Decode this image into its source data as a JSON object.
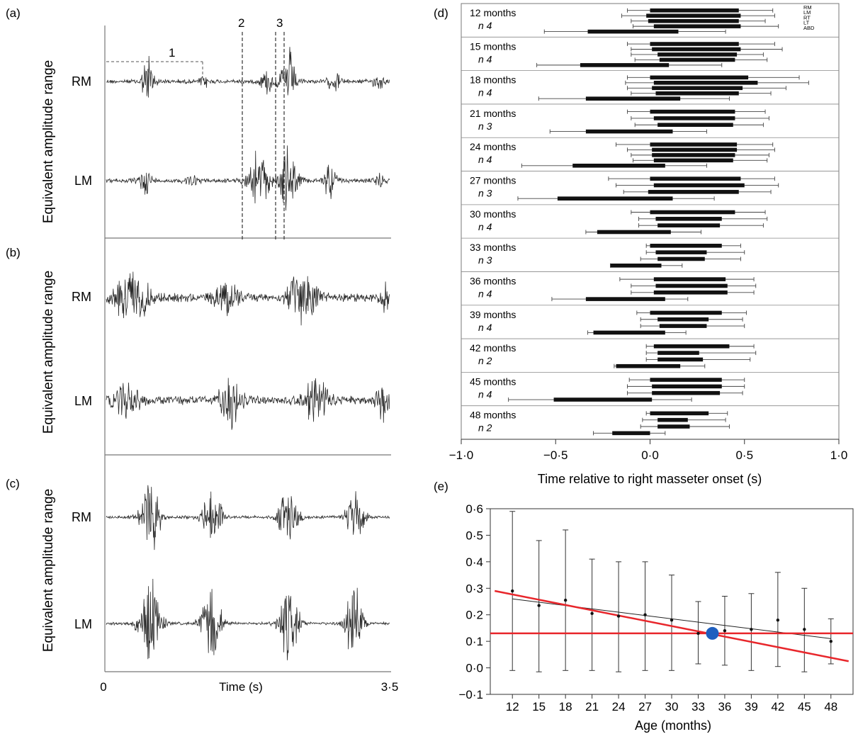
{
  "panels": {
    "a": {
      "label": "(a)",
      "ylabel": "Equivalent amplitude range",
      "trace_labels": [
        "RM",
        "LM"
      ],
      "annotations": [
        "1",
        "2",
        "3"
      ]
    },
    "b": {
      "label": "(b)",
      "ylabel": "Equivalent amplitude range",
      "trace_labels": [
        "RM",
        "LM"
      ]
    },
    "c": {
      "label": "(c)",
      "ylabel": "Equivalent amplitude range",
      "trace_labels": [
        "RM",
        "LM"
      ],
      "xlabel": "Time (s)",
      "x_start": "0",
      "x_end": "3·5"
    },
    "d": {
      "label": "(d)"
    },
    "e": {
      "label": "(e)"
    }
  },
  "colors": {
    "trace": "#2a2a2a",
    "bar": "#111111",
    "regression": "#e8262b",
    "marker": "#1f5fbf",
    "frame": "#777777"
  },
  "chart_data": [
    {
      "panel": "d",
      "type": "bar",
      "orientation": "horizontal-interval",
      "xlabel": "Time relative to right masseter onset (s)",
      "xlim": [
        -1.0,
        1.0
      ],
      "xticks": [
        -1.0,
        -0.5,
        0.0,
        0.5,
        1.0
      ],
      "xtick_labels": [
        "−1·0",
        "−0·5",
        "0·0",
        "0·5",
        "1·0"
      ],
      "legend": [
        "RM",
        "LM",
        "RT",
        "LT",
        "ABD"
      ],
      "legend_position": "top-right",
      "groups": [
        {
          "label": "12 months",
          "n": "n 4",
          "bars": [
            [
              0.0,
              0.47,
              0.65
            ],
            [
              -0.02,
              0.48,
              0.66
            ],
            [
              -0.01,
              0.47,
              0.61
            ],
            [
              0.02,
              0.48,
              0.68
            ],
            [
              -0.33,
              0.15,
              0.4
            ]
          ],
          "whisker_lo": [
            -0.12,
            -0.15,
            -0.1,
            -0.09,
            -0.56
          ]
        },
        {
          "label": "15 months",
          "n": "n 4",
          "bars": [
            [
              0.0,
              0.47,
              0.66
            ],
            [
              0.01,
              0.48,
              0.7
            ],
            [
              0.04,
              0.46,
              0.6
            ],
            [
              0.05,
              0.45,
              0.62
            ],
            [
              -0.37,
              0.1,
              0.38
            ]
          ],
          "whisker_lo": [
            -0.12,
            -0.1,
            -0.1,
            -0.08,
            -0.6
          ]
        },
        {
          "label": "18 months",
          "n": "n 4",
          "bars": [
            [
              0.0,
              0.52,
              0.79
            ],
            [
              0.02,
              0.57,
              0.84
            ],
            [
              0.01,
              0.49,
              0.72
            ],
            [
              0.03,
              0.47,
              0.64
            ],
            [
              -0.34,
              0.16,
              0.42
            ]
          ],
          "whisker_lo": [
            -0.12,
            -0.13,
            -0.12,
            -0.1,
            -0.59
          ]
        },
        {
          "label": "21 months",
          "n": "n 3",
          "bars": [
            [
              0.0,
              0.45,
              0.61
            ],
            [
              0.02,
              0.45,
              0.63
            ],
            [
              0.04,
              0.44,
              0.6
            ],
            [
              -0.34,
              0.12,
              0.3
            ]
          ],
          "whisker_lo": [
            -0.12,
            -0.1,
            -0.08,
            -0.53
          ]
        },
        {
          "label": "24 months",
          "n": "n 4",
          "bars": [
            [
              0.0,
              0.46,
              0.65
            ],
            [
              0.01,
              0.46,
              0.66
            ],
            [
              0.01,
              0.45,
              0.63
            ],
            [
              0.02,
              0.44,
              0.62
            ],
            [
              -0.41,
              0.08,
              0.3
            ]
          ],
          "whisker_lo": [
            -0.18,
            -0.12,
            -0.1,
            -0.09,
            -0.68
          ]
        },
        {
          "label": "27 months",
          "n": "n 3",
          "bars": [
            [
              0.0,
              0.48,
              0.66
            ],
            [
              0.02,
              0.5,
              0.68
            ],
            [
              -0.01,
              0.47,
              0.64
            ],
            [
              -0.49,
              0.12,
              0.34
            ]
          ],
          "whisker_lo": [
            -0.22,
            -0.18,
            -0.14,
            -0.7
          ]
        },
        {
          "label": "30 months",
          "n": "n 4",
          "bars": [
            [
              0.0,
              0.45,
              0.61
            ],
            [
              0.03,
              0.38,
              0.62
            ],
            [
              0.04,
              0.37,
              0.6
            ],
            [
              -0.28,
              0.11,
              0.27
            ]
          ],
          "whisker_lo": [
            -0.1,
            -0.06,
            -0.06,
            -0.34
          ]
        },
        {
          "label": "33 months",
          "n": "n 3",
          "bars": [
            [
              0.0,
              0.38,
              0.48
            ],
            [
              0.03,
              0.3,
              0.5
            ],
            [
              0.04,
              0.29,
              0.48
            ],
            [
              -0.21,
              0.06,
              0.17
            ]
          ],
          "whisker_lo": [
            -0.02,
            -0.02,
            -0.05,
            -0.21
          ]
        },
        {
          "label": "36 months",
          "n": "n 4",
          "bars": [
            [
              0.02,
              0.4,
              0.55
            ],
            [
              0.03,
              0.41,
              0.56
            ],
            [
              0.02,
              0.41,
              0.55
            ],
            [
              -0.34,
              0.08,
              0.2
            ]
          ],
          "whisker_lo": [
            -0.16,
            -0.1,
            -0.1,
            -0.52
          ]
        },
        {
          "label": "39 months",
          "n": "n 4",
          "bars": [
            [
              0.0,
              0.38,
              0.51
            ],
            [
              0.04,
              0.31,
              0.49
            ],
            [
              0.05,
              0.3,
              0.5
            ],
            [
              -0.3,
              0.08,
              0.19
            ]
          ],
          "whisker_lo": [
            -0.07,
            -0.05,
            -0.05,
            -0.33
          ]
        },
        {
          "label": "42 months",
          "n": "n 2",
          "bars": [
            [
              0.02,
              0.42,
              0.55
            ],
            [
              0.04,
              0.26,
              0.56
            ],
            [
              0.04,
              0.28,
              0.53
            ],
            [
              -0.18,
              0.16,
              0.29
            ]
          ],
          "whisker_lo": [
            -0.02,
            -0.02,
            -0.02,
            -0.19
          ]
        },
        {
          "label": "45 months",
          "n": "n 4",
          "bars": [
            [
              0.0,
              0.38,
              0.5
            ],
            [
              0.01,
              0.38,
              0.5
            ],
            [
              0.01,
              0.37,
              0.49
            ],
            [
              -0.51,
              0.01,
              0.22
            ]
          ],
          "whisker_lo": [
            -0.11,
            -0.12,
            -0.12,
            -0.75
          ]
        },
        {
          "label": "48 months",
          "n": "n 2",
          "bars": [
            [
              0.0,
              0.31,
              0.41
            ],
            [
              0.04,
              0.2,
              0.4
            ],
            [
              0.04,
              0.21,
              0.42
            ],
            [
              -0.2,
              0.0,
              0.08
            ]
          ],
          "whisker_lo": [
            -0.02,
            -0.04,
            -0.05,
            -0.3
          ]
        }
      ]
    },
    {
      "panel": "e",
      "type": "scatter",
      "xlabel": "Age (months)",
      "ylabel": "",
      "x": [
        12,
        15,
        18,
        21,
        24,
        27,
        30,
        33,
        36,
        39,
        42,
        45,
        48
      ],
      "xtick_labels": [
        "12",
        "15",
        "18",
        "21",
        "24",
        "27",
        "30",
        "33",
        "36",
        "39",
        "42",
        "45",
        "48"
      ],
      "ylim": [
        -0.1,
        0.6
      ],
      "yticks": [
        -0.1,
        0.0,
        0.1,
        0.2,
        0.3,
        0.4,
        0.5,
        0.6
      ],
      "ytick_labels": [
        "−0·1",
        "0·0",
        "0·1",
        "0·2",
        "0·3",
        "0·4",
        "0·5",
        "0·6"
      ],
      "y": [
        0.29,
        0.235,
        0.255,
        0.205,
        0.195,
        0.2,
        0.18,
        0.13,
        0.14,
        0.145,
        0.18,
        0.145,
        0.1
      ],
      "y_upper": [
        0.59,
        0.48,
        0.52,
        0.41,
        0.4,
        0.4,
        0.35,
        0.25,
        0.27,
        0.28,
        0.36,
        0.3,
        0.185
      ],
      "y_lower": [
        -0.01,
        -0.015,
        -0.01,
        -0.01,
        -0.015,
        -0.01,
        -0.01,
        0.015,
        0.01,
        -0.01,
        0.005,
        -0.015,
        0.015
      ],
      "trend_black": {
        "x": [
          12,
          48
        ],
        "y": [
          0.26,
          0.11
        ]
      },
      "trend_red": {
        "x": [
          10,
          50
        ],
        "y": [
          0.29,
          0.025
        ]
      },
      "hline_red": 0.13,
      "marker_point": {
        "x": 34.6,
        "y": 0.13
      }
    }
  ]
}
